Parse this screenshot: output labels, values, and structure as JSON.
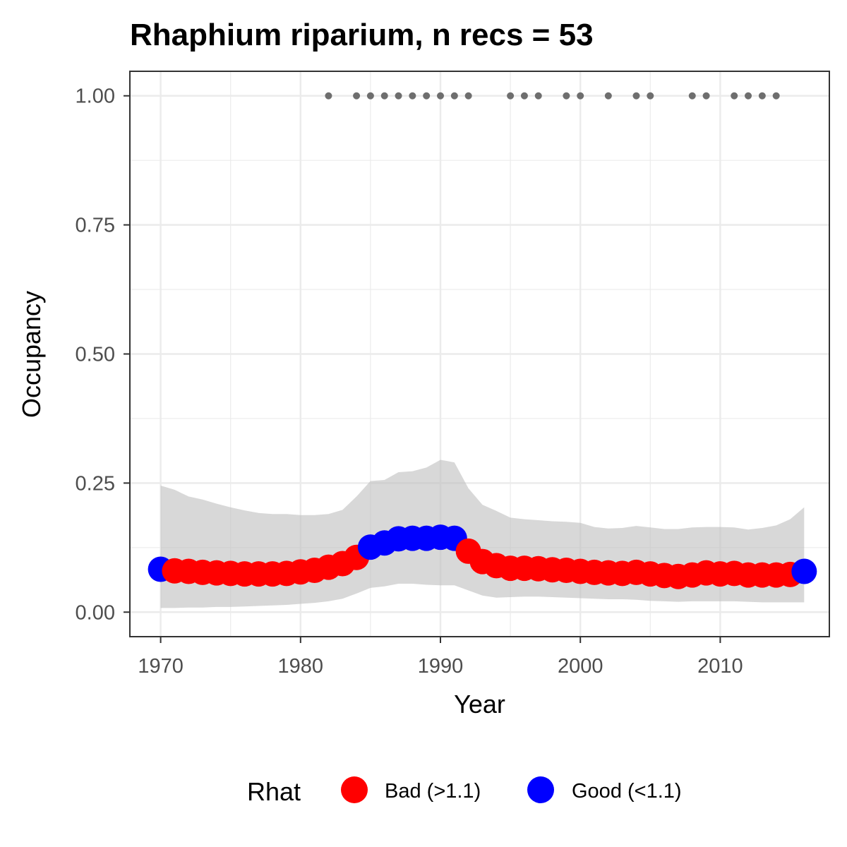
{
  "chart_data": {
    "type": "line",
    "title": "Rhaphium riparium, n recs = 53",
    "xlabel": "Year",
    "ylabel": "Occupancy",
    "xlim": [
      1967.8,
      2017.8
    ],
    "ylim": [
      -0.0475,
      1.0475
    ],
    "x_ticks": [
      1970,
      1980,
      1990,
      2000,
      2010
    ],
    "x_tick_labels": [
      "1970",
      "1980",
      "1990",
      "2000",
      "2010"
    ],
    "y_ticks": [
      0,
      0.25,
      0.5,
      0.75,
      1
    ],
    "y_tick_labels": [
      "0.00",
      "0.25",
      "0.50",
      "0.75",
      "1.00"
    ],
    "grid": true,
    "colors": {
      "bad": "#ff0000",
      "good": "#0000ff",
      "ribbon": "#bebebe",
      "records": "#6e6e6e"
    },
    "series": [
      {
        "x": [
          1970,
          1971,
          1972,
          1973,
          1974,
          1975,
          1976,
          1977,
          1978,
          1979,
          1980,
          1981,
          1982,
          1983,
          1984,
          1985,
          1986,
          1987,
          1988,
          1989,
          1990,
          1991,
          1992,
          1993,
          1994,
          1995,
          1996,
          1997,
          1998,
          1999,
          2000,
          2001,
          2002,
          2003,
          2004,
          2005,
          2006,
          2007,
          2008,
          2009,
          2010,
          2011,
          2012,
          2013,
          2014,
          2015,
          2016
        ],
        "y": [
          0.083,
          0.08,
          0.079,
          0.077,
          0.076,
          0.075,
          0.074,
          0.074,
          0.074,
          0.075,
          0.078,
          0.081,
          0.087,
          0.094,
          0.106,
          0.126,
          0.134,
          0.142,
          0.143,
          0.143,
          0.145,
          0.143,
          0.118,
          0.098,
          0.09,
          0.085,
          0.085,
          0.084,
          0.082,
          0.081,
          0.079,
          0.077,
          0.076,
          0.075,
          0.077,
          0.074,
          0.071,
          0.069,
          0.072,
          0.076,
          0.074,
          0.075,
          0.072,
          0.072,
          0.072,
          0.073,
          0.079
        ],
        "rhat": [
          "Good",
          "Bad",
          "Bad",
          "Bad",
          "Bad",
          "Bad",
          "Bad",
          "Bad",
          "Bad",
          "Bad",
          "Bad",
          "Bad",
          "Bad",
          "Bad",
          "Bad",
          "Good",
          "Good",
          "Good",
          "Good",
          "Good",
          "Good",
          "Good",
          "Bad",
          "Bad",
          "Bad",
          "Bad",
          "Bad",
          "Bad",
          "Bad",
          "Bad",
          "Bad",
          "Bad",
          "Bad",
          "Bad",
          "Bad",
          "Bad",
          "Bad",
          "Bad",
          "Bad",
          "Bad",
          "Bad",
          "Bad",
          "Bad",
          "Bad",
          "Bad",
          "Bad",
          "Good"
        ],
        "lower": [
          0.008,
          0.008,
          0.009,
          0.009,
          0.01,
          0.01,
          0.011,
          0.012,
          0.013,
          0.014,
          0.016,
          0.018,
          0.021,
          0.026,
          0.036,
          0.047,
          0.05,
          0.055,
          0.055,
          0.053,
          0.052,
          0.052,
          0.042,
          0.032,
          0.028,
          0.029,
          0.03,
          0.03,
          0.029,
          0.028,
          0.027,
          0.026,
          0.025,
          0.025,
          0.024,
          0.022,
          0.021,
          0.02,
          0.021,
          0.021,
          0.021,
          0.021,
          0.02,
          0.019,
          0.019,
          0.019,
          0.019
        ],
        "upper": [
          0.245,
          0.237,
          0.224,
          0.218,
          0.21,
          0.203,
          0.197,
          0.192,
          0.19,
          0.19,
          0.188,
          0.188,
          0.19,
          0.198,
          0.224,
          0.254,
          0.256,
          0.271,
          0.273,
          0.28,
          0.295,
          0.29,
          0.24,
          0.208,
          0.196,
          0.183,
          0.18,
          0.178,
          0.176,
          0.175,
          0.173,
          0.165,
          0.162,
          0.163,
          0.167,
          0.164,
          0.161,
          0.161,
          0.164,
          0.165,
          0.165,
          0.164,
          0.16,
          0.163,
          0.168,
          0.18,
          0.203
        ]
      }
    ],
    "records": {
      "y": 1,
      "x": [
        1982,
        1984,
        1985,
        1986,
        1987,
        1988,
        1989,
        1990,
        1991,
        1992,
        1995,
        1996,
        1997,
        1999,
        2000,
        2002,
        2004,
        2005,
        2008,
        2009,
        2011,
        2012,
        2013,
        2014
      ]
    },
    "legend": {
      "title": "Rhat",
      "position": "bottom",
      "items": [
        {
          "label": "Bad (>1.1)",
          "color": "#ff0000"
        },
        {
          "label": "Good (<1.1)",
          "color": "#0000ff"
        }
      ]
    }
  }
}
